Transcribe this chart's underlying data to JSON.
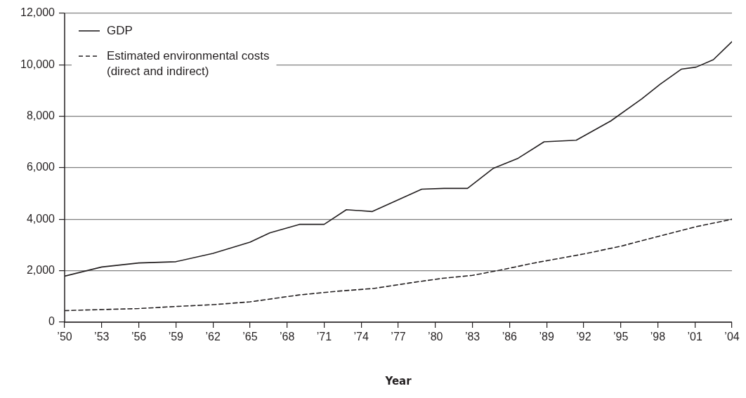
{
  "chart_data": {
    "type": "line",
    "xlabel": "Year",
    "xlim": [
      1950,
      2004
    ],
    "xticks": [
      {
        "value": 1950,
        "label": "’50"
      },
      {
        "value": 1953,
        "label": "’53"
      },
      {
        "value": 1956,
        "label": "’56"
      },
      {
        "value": 1959,
        "label": "’59"
      },
      {
        "value": 1962,
        "label": "’62"
      },
      {
        "value": 1965,
        "label": "’65"
      },
      {
        "value": 1968,
        "label": "’68"
      },
      {
        "value": 1971,
        "label": "’71"
      },
      {
        "value": 1974,
        "label": "’74"
      },
      {
        "value": 1977,
        "label": "’77"
      },
      {
        "value": 1980,
        "label": "’80"
      },
      {
        "value": 1983,
        "label": "’83"
      },
      {
        "value": 1986,
        "label": "’86"
      },
      {
        "value": 1989,
        "label": "’89"
      },
      {
        "value": 1992,
        "label": "’92"
      },
      {
        "value": 1995,
        "label": "’95"
      },
      {
        "value": 1998,
        "label": "’98"
      },
      {
        "value": 2001,
        "label": "’01"
      },
      {
        "value": 2004,
        "label": "’04"
      }
    ],
    "ylim": [
      0,
      12000
    ],
    "yticks": [
      0,
      {
        "value": 2000,
        "label": "2,000"
      },
      {
        "value": 4000,
        "label": "4,000"
      },
      {
        "value": 6000,
        "label": "6,000"
      },
      {
        "value": 8000,
        "label": "8,000"
      },
      {
        "value": 10000,
        "label": "10,000"
      },
      {
        "value": 12000,
        "label": "12,000"
      }
    ],
    "grid": "y",
    "legend": "top left",
    "marker": "none",
    "series": [
      {
        "name": "GDP",
        "color": "#231f20",
        "line_style": "solid",
        "x": [
          1950,
          1953,
          1956,
          1959,
          1962,
          1965,
          1966.6,
          1969,
          1971,
          1972.8,
          1974.9,
          1978.9,
          1980.7,
          1982.6,
          1984.7,
          1986.7,
          1988.8,
          1991.4,
          1994.2,
          1996.7,
          1998.2,
          1999.9,
          2001.1,
          2002.5,
          2004
        ],
        "values": [
          1790,
          2145,
          2300,
          2350,
          2675,
          3110,
          3470,
          3800,
          3800,
          4370,
          4300,
          5170,
          5200,
          5200,
          5980,
          6370,
          7010,
          7070,
          7820,
          8675,
          9250,
          9830,
          9910,
          10200,
          10900
        ]
      },
      {
        "name": "Estimated environmental costs (direct and indirect)",
        "color": "#231f20",
        "line_style": "dashed",
        "x": [
          1950,
          1956,
          1959,
          1962,
          1965,
          1969,
          1972,
          1975,
          1978,
          1980.5,
          1983,
          1985,
          1988,
          1992,
          1995,
          1998,
          2001,
          2004
        ],
        "values": [
          450,
          530,
          610,
          680,
          790,
          1060,
          1200,
          1310,
          1530,
          1700,
          1820,
          2000,
          2300,
          2650,
          2950,
          3330,
          3700,
          4000
        ]
      }
    ]
  }
}
